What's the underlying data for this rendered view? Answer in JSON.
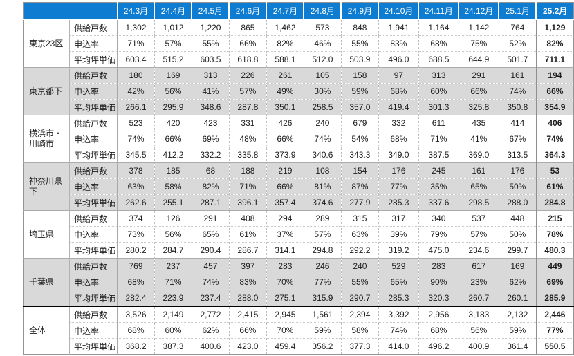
{
  "colors": {
    "header_bg": "#0E7DD1",
    "header_text": "#FFFFFF",
    "shade_bg": "#D9D9D9",
    "thick_divider": "#000000",
    "body_text": "#1C1C1C"
  },
  "corner_label": "",
  "chart_data": {
    "type": "table",
    "columns": [
      "24.3月",
      "24.4月",
      "24.5月",
      "24.6月",
      "24.7月",
      "24.8月",
      "24.9月",
      "24.10月",
      "24.11月",
      "24.12月",
      "25.1月",
      "25.2月"
    ],
    "metrics": [
      "供給戸数",
      "申込率",
      "平均坪単価"
    ],
    "row_groups": [
      {
        "region": "東京23区",
        "shaded": false,
        "total": false,
        "values": [
          [
            "1,302",
            "1,012",
            "1,220",
            "865",
            "1,462",
            "573",
            "848",
            "1,941",
            "1,164",
            "1,142",
            "764",
            "1,129"
          ],
          [
            "71%",
            "57%",
            "55%",
            "66%",
            "82%",
            "46%",
            "55%",
            "83%",
            "68%",
            "75%",
            "52%",
            "82%"
          ],
          [
            "603.4",
            "515.2",
            "603.5",
            "618.8",
            "588.1",
            "512.0",
            "503.9",
            "496.0",
            "688.5",
            "644.9",
            "501.7",
            "711.1"
          ]
        ]
      },
      {
        "region": "東京都下",
        "shaded": true,
        "total": false,
        "values": [
          [
            "180",
            "169",
            "313",
            "226",
            "261",
            "105",
            "158",
            "97",
            "313",
            "291",
            "161",
            "194"
          ],
          [
            "42%",
            "56%",
            "41%",
            "57%",
            "49%",
            "30%",
            "59%",
            "68%",
            "60%",
            "66%",
            "74%",
            "66%"
          ],
          [
            "266.1",
            "295.9",
            "348.6",
            "287.8",
            "350.1",
            "258.5",
            "357.0",
            "419.4",
            "301.3",
            "325.8",
            "350.8",
            "354.9"
          ]
        ]
      },
      {
        "region": "横浜市・川崎市",
        "shaded": false,
        "total": false,
        "values": [
          [
            "523",
            "420",
            "423",
            "331",
            "426",
            "240",
            "679",
            "332",
            "611",
            "435",
            "414",
            "406"
          ],
          [
            "74%",
            "66%",
            "69%",
            "48%",
            "66%",
            "74%",
            "54%",
            "68%",
            "71%",
            "41%",
            "67%",
            "74%"
          ],
          [
            "345.5",
            "412.2",
            "332.2",
            "335.8",
            "373.9",
            "340.6",
            "343.3",
            "349.0",
            "387.5",
            "369.0",
            "313.5",
            "364.3"
          ]
        ]
      },
      {
        "region": "神奈川県下",
        "shaded": true,
        "total": false,
        "values": [
          [
            "378",
            "185",
            "68",
            "188",
            "219",
            "108",
            "154",
            "176",
            "245",
            "161",
            "176",
            "53"
          ],
          [
            "63%",
            "58%",
            "82%",
            "71%",
            "66%",
            "81%",
            "87%",
            "77%",
            "35%",
            "65%",
            "50%",
            "61%"
          ],
          [
            "262.6",
            "255.1",
            "287.1",
            "396.1",
            "357.4",
            "374.6",
            "277.9",
            "285.3",
            "337.6",
            "298.5",
            "288.0",
            "284.8"
          ]
        ]
      },
      {
        "region": "埼玉県",
        "shaded": false,
        "total": false,
        "values": [
          [
            "374",
            "126",
            "291",
            "408",
            "294",
            "289",
            "315",
            "317",
            "340",
            "537",
            "448",
            "215"
          ],
          [
            "73%",
            "56%",
            "65%",
            "61%",
            "37%",
            "57%",
            "63%",
            "39%",
            "79%",
            "57%",
            "50%",
            "78%"
          ],
          [
            "280.2",
            "284.7",
            "290.4",
            "286.7",
            "314.1",
            "294.8",
            "292.2",
            "319.2",
            "475.0",
            "234.6",
            "299.7",
            "480.3"
          ]
        ]
      },
      {
        "region": "千葉県",
        "shaded": true,
        "total": false,
        "values": [
          [
            "769",
            "237",
            "457",
            "397",
            "283",
            "246",
            "240",
            "529",
            "283",
            "617",
            "169",
            "449"
          ],
          [
            "68%",
            "71%",
            "74%",
            "83%",
            "70%",
            "77%",
            "55%",
            "65%",
            "90%",
            "23%",
            "62%",
            "69%"
          ],
          [
            "282.4",
            "223.9",
            "237.4",
            "288.0",
            "275.1",
            "315.9",
            "290.7",
            "285.3",
            "320.3",
            "260.7",
            "260.1",
            "285.9"
          ]
        ]
      },
      {
        "region": "全体",
        "shaded": false,
        "total": true,
        "values": [
          [
            "3,526",
            "2,149",
            "2,772",
            "2,415",
            "2,945",
            "1,561",
            "2,394",
            "3,392",
            "2,956",
            "3,183",
            "2,132",
            "2,446"
          ],
          [
            "68%",
            "60%",
            "62%",
            "66%",
            "70%",
            "59%",
            "58%",
            "74%",
            "68%",
            "56%",
            "59%",
            "77%"
          ],
          [
            "368.2",
            "387.3",
            "400.6",
            "423.0",
            "459.4",
            "356.2",
            "377.3",
            "414.0",
            "496.2",
            "400.9",
            "361.4",
            "550.5"
          ]
        ]
      }
    ]
  }
}
